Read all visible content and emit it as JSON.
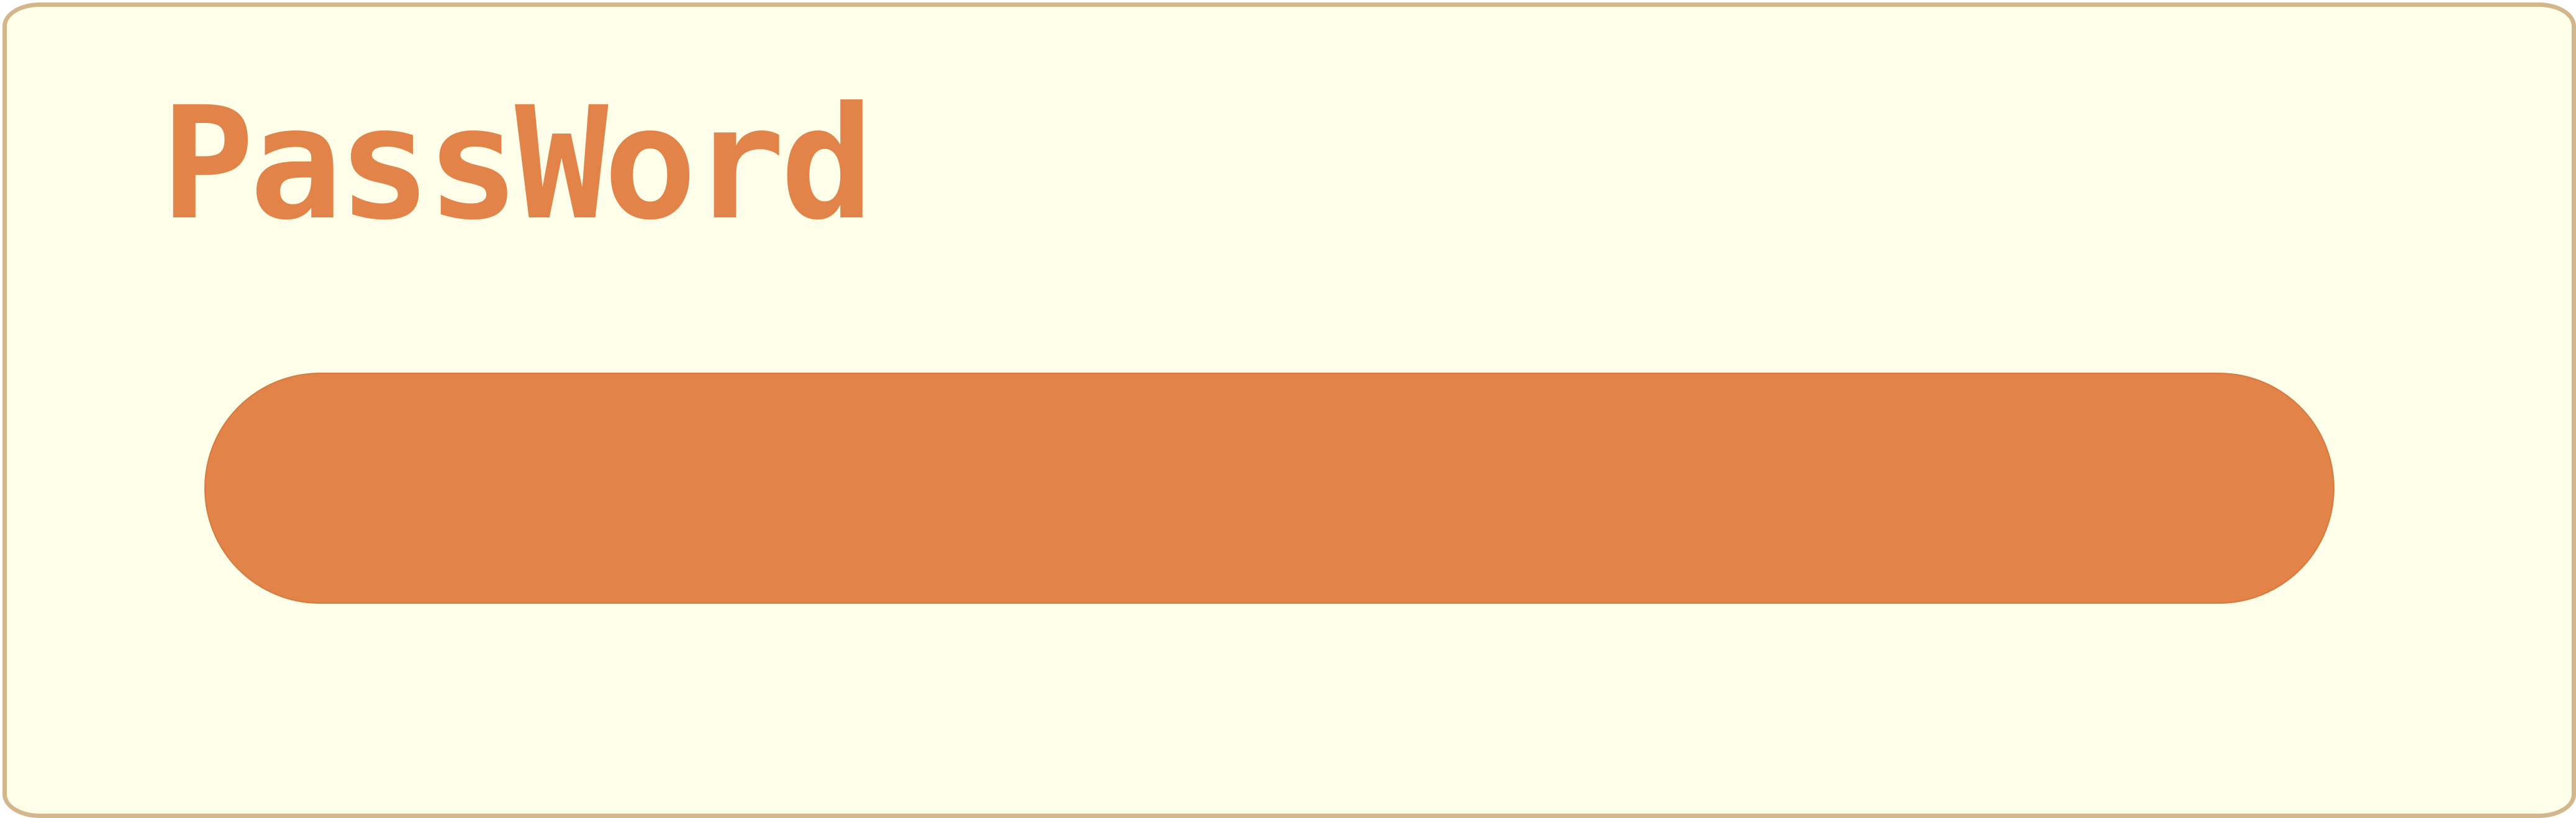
{
  "form": {
    "label": "PassWord",
    "input_value": ""
  },
  "colors": {
    "panel_background": "#fffee9",
    "panel_border": "#d4b68d",
    "accent": "#e2844a"
  }
}
